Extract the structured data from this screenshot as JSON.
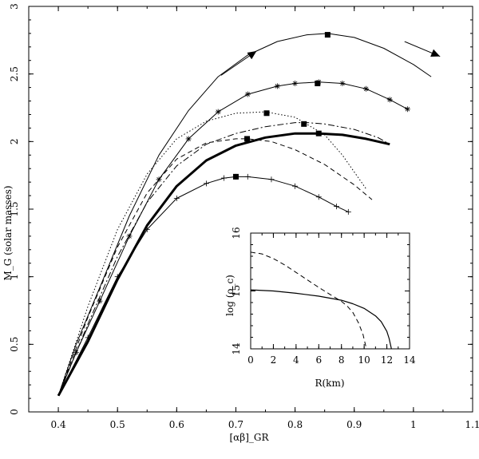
{
  "chart_data": [
    {
      "type": "line",
      "title": "",
      "xlabel": "[αβ]_GR",
      "ylabel": "M_G (solar masses)",
      "xlim": [
        0.35,
        1.1
      ],
      "ylim": [
        0,
        3
      ],
      "xticks": [
        "0.4",
        "0.5",
        "0.6",
        "0.7",
        "0.8",
        "0.9",
        "1",
        "1.1"
      ],
      "xtick_values": [
        0.4,
        0.5,
        0.6,
        0.7,
        0.8,
        0.9,
        1.0,
        1.1
      ],
      "yticks": [
        "0",
        "0.5",
        "1",
        "1.5",
        "2",
        "2.5",
        "3"
      ],
      "ytick_values": [
        0,
        0.5,
        1,
        1.5,
        2,
        2.5,
        3
      ],
      "grid": false,
      "legend": "none",
      "annotations": [
        "arrow-up-right",
        "arrow-down-right"
      ],
      "series": [
        {
          "style": "solid-thin",
          "marker": "none",
          "x": [
            0.4,
            0.43,
            0.47,
            0.52,
            0.57,
            0.62,
            0.67,
            0.72,
            0.77,
            0.82,
            0.855,
            0.9,
            0.95,
            1.0,
            1.03
          ],
          "y": [
            0.12,
            0.5,
            0.92,
            1.45,
            1.9,
            2.23,
            2.48,
            2.64,
            2.74,
            2.79,
            2.8,
            2.77,
            2.69,
            2.57,
            2.48
          ]
        },
        {
          "style": "solid-thin",
          "marker": "asterisk",
          "x": [
            0.4,
            0.43,
            0.47,
            0.52,
            0.57,
            0.62,
            0.67,
            0.72,
            0.77,
            0.8,
            0.84,
            0.88,
            0.92,
            0.96,
            0.99
          ],
          "y": [
            0.12,
            0.44,
            0.82,
            1.3,
            1.72,
            2.02,
            2.22,
            2.35,
            2.41,
            2.43,
            2.44,
            2.43,
            2.39,
            2.31,
            2.24
          ]
        },
        {
          "style": "dotted",
          "marker": "none",
          "x": [
            0.4,
            0.45,
            0.5,
            0.55,
            0.6,
            0.65,
            0.7,
            0.75,
            0.8,
            0.85,
            0.88,
            0.92
          ],
          "y": [
            0.12,
            0.78,
            1.35,
            1.76,
            2.02,
            2.15,
            2.21,
            2.22,
            2.18,
            2.05,
            1.9,
            1.65
          ]
        },
        {
          "style": "dash-dot",
          "marker": "none",
          "x": [
            0.4,
            0.45,
            0.5,
            0.55,
            0.6,
            0.65,
            0.7,
            0.75,
            0.8,
            0.82,
            0.85,
            0.9,
            0.94,
            0.96
          ],
          "y": [
            0.12,
            0.65,
            1.15,
            1.55,
            1.82,
            1.98,
            2.06,
            2.11,
            2.14,
            2.14,
            2.13,
            2.09,
            2.03,
            1.98
          ]
        },
        {
          "style": "dashed",
          "marker": "none",
          "x": [
            0.4,
            0.45,
            0.5,
            0.55,
            0.6,
            0.65,
            0.7,
            0.72,
            0.76,
            0.8,
            0.85,
            0.9,
            0.93
          ],
          "y": [
            0.12,
            0.7,
            1.22,
            1.62,
            1.87,
            1.99,
            2.02,
            2.02,
            2.0,
            1.94,
            1.83,
            1.68,
            1.57
          ]
        },
        {
          "style": "solid-thick",
          "marker": "none",
          "x": [
            0.4,
            0.45,
            0.5,
            0.55,
            0.6,
            0.65,
            0.7,
            0.75,
            0.8,
            0.84,
            0.88,
            0.92,
            0.96
          ],
          "y": [
            0.12,
            0.52,
            0.98,
            1.38,
            1.67,
            1.86,
            1.97,
            2.03,
            2.06,
            2.06,
            2.05,
            2.02,
            1.98
          ]
        },
        {
          "style": "solid-thin",
          "marker": "plus",
          "x": [
            0.4,
            0.45,
            0.5,
            0.55,
            0.6,
            0.65,
            0.68,
            0.7,
            0.72,
            0.76,
            0.8,
            0.84,
            0.87,
            0.89
          ],
          "y": [
            0.12,
            0.55,
            1.0,
            1.35,
            1.58,
            1.69,
            1.73,
            1.74,
            1.74,
            1.72,
            1.67,
            1.59,
            1.52,
            1.48
          ]
        }
      ],
      "max_markers": [
        {
          "x": 0.855,
          "y": 2.79
        },
        {
          "x": 0.838,
          "y": 2.43
        },
        {
          "x": 0.752,
          "y": 2.21
        },
        {
          "x": 0.815,
          "y": 2.13
        },
        {
          "x": 0.719,
          "y": 2.02
        },
        {
          "x": 0.84,
          "y": 2.06
        },
        {
          "x": 0.7,
          "y": 1.74
        }
      ]
    },
    {
      "type": "line",
      "title": "",
      "xlabel": "R(km)",
      "ylabel": "log (ρ_c)",
      "xlim": [
        0,
        14
      ],
      "ylim": [
        14,
        16
      ],
      "xticks": [
        "0",
        "2",
        "4",
        "6",
        "8",
        "10",
        "12",
        "14"
      ],
      "xtick_values": [
        0,
        2,
        4,
        6,
        8,
        10,
        12,
        14
      ],
      "yticks": [
        "14",
        "15",
        "16"
      ],
      "ytick_values": [
        14,
        15,
        16
      ],
      "grid": false,
      "legend": "none",
      "series": [
        {
          "style": "solid",
          "x": [
            0,
            2,
            4,
            6,
            8,
            9,
            10,
            11,
            11.5,
            12,
            12.2,
            12.35,
            12.4
          ],
          "y": [
            15.02,
            15.0,
            14.96,
            14.91,
            14.84,
            14.78,
            14.7,
            14.57,
            14.47,
            14.3,
            14.18,
            14.05,
            14.0
          ]
        },
        {
          "style": "dashed",
          "x": [
            0,
            1,
            2,
            3,
            4,
            5,
            6,
            7,
            8,
            8.5,
            9,
            9.5,
            9.9,
            10.1,
            10.2
          ],
          "y": [
            15.67,
            15.64,
            15.56,
            15.45,
            15.32,
            15.19,
            15.06,
            14.94,
            14.82,
            14.74,
            14.63,
            14.45,
            14.25,
            14.08,
            14.0
          ]
        }
      ]
    }
  ]
}
